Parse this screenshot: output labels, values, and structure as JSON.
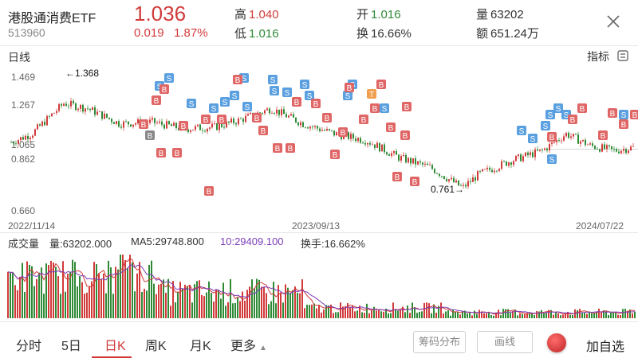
{
  "quote": {
    "name": "港股通消费ETF",
    "code": "513960",
    "price": "1.036",
    "change": "0.019",
    "change_pct": "1.87%",
    "high_label": "高",
    "high": "1.040",
    "low_label": "低",
    "low": "1.016",
    "open_label": "开",
    "open": "1.016",
    "turnover_label": "换",
    "turnover": "16.66%",
    "volume_label": "量",
    "volume": "63202",
    "amount_label": "额",
    "amount": "651.24万"
  },
  "kline": {
    "title": "日线",
    "indicator_label": "指标",
    "y_labels": [
      "1.469",
      "1.267",
      "1.065",
      "0.862",
      "0.660"
    ],
    "x_labels": [
      "2022/11/14",
      "2023/09/13",
      "2024/07/22"
    ],
    "max_annotation": "←1.368",
    "min_annotation": "0.761→"
  },
  "volume_panel": {
    "title": "成交量",
    "vol_text": "量:63202.000",
    "ma5_text": "MA5:29748.800",
    "ma10_text": "10:29409.100",
    "turnover_text": "换手:16.662%"
  },
  "tabs": {
    "items": [
      "分时",
      "5日",
      "日K",
      "周K",
      "月K",
      "更多"
    ],
    "active": "日K"
  },
  "buttons": {
    "chip_dist": "筹码分布",
    "draw_line": "画线",
    "add_watch": "加自选"
  },
  "colors": {
    "up": "#d23a3a",
    "down": "#2f8a36",
    "buy_marker": "#e06666",
    "sell_marker": "#5aa0e0",
    "t_marker": "#f0a050"
  },
  "markers": {
    "buy": "B",
    "sell": "S",
    "t": "T"
  }
}
